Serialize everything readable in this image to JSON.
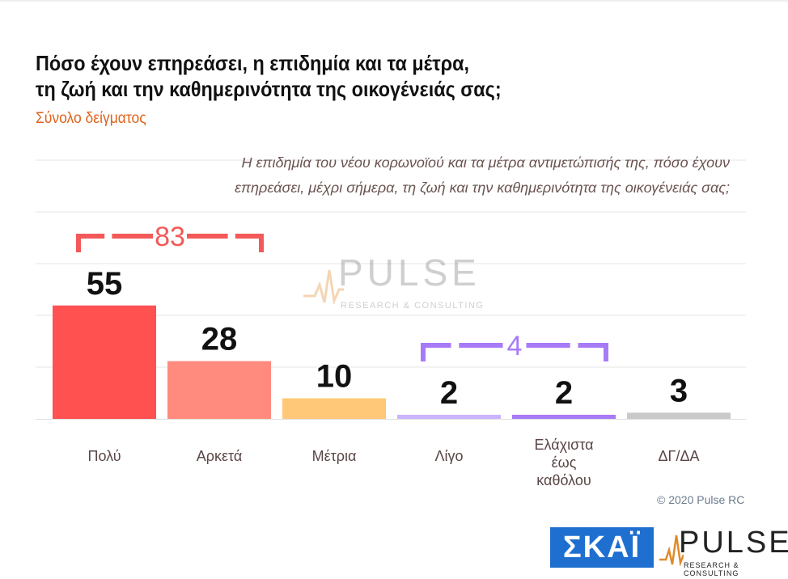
{
  "header": {
    "title_line1": "Πόσο έχουν επηρεάσει, η επιδημία και τα μέτρα,",
    "title_line2": "τη ζωή και την καθημερινότητα της οικογένειάς σας;",
    "subtitle": "Σύνολο δείγματος"
  },
  "question": {
    "line1": "Η επιδημία του νέου κορωνοϊού και τα μέτρα αντιμετώπισής της, πόσο έχουν",
    "line2": "επηρεάσει, μέχρι σήμερα, τη ζωή και την καθημερινότητα της οικογένειάς σας;"
  },
  "chart_data": {
    "type": "bar",
    "categories": [
      "Πολύ",
      "Αρκετά",
      "Μέτρια",
      "Λίγο",
      "Ελάχιστα\nέως\nκαθόλου",
      "ΔΓ/ΔΑ"
    ],
    "values": [
      55,
      28,
      10,
      2,
      2,
      3
    ],
    "colors": [
      "#ff5150",
      "#ff8a7e",
      "#ffc878",
      "#cab4ff",
      "#a77bf8",
      "#c9c9c9"
    ],
    "ylim": [
      0,
      100
    ],
    "grid": true,
    "brackets": [
      {
        "label": "83",
        "from": 0,
        "to": 1,
        "color": "#f45959"
      },
      {
        "label": "4",
        "from": 3,
        "to": 4,
        "color": "#a77bf8"
      }
    ]
  },
  "footer": {
    "copyright": "© 2020 Pulse RC",
    "skai_logo": "ΣΚΑΪ",
    "pulse_logo": "PULSE",
    "pulse_sub": "RESEARCH & CONSULTING"
  },
  "watermark": {
    "text": "PULSE",
    "sub": "RESEARCH & CONSULTING"
  }
}
